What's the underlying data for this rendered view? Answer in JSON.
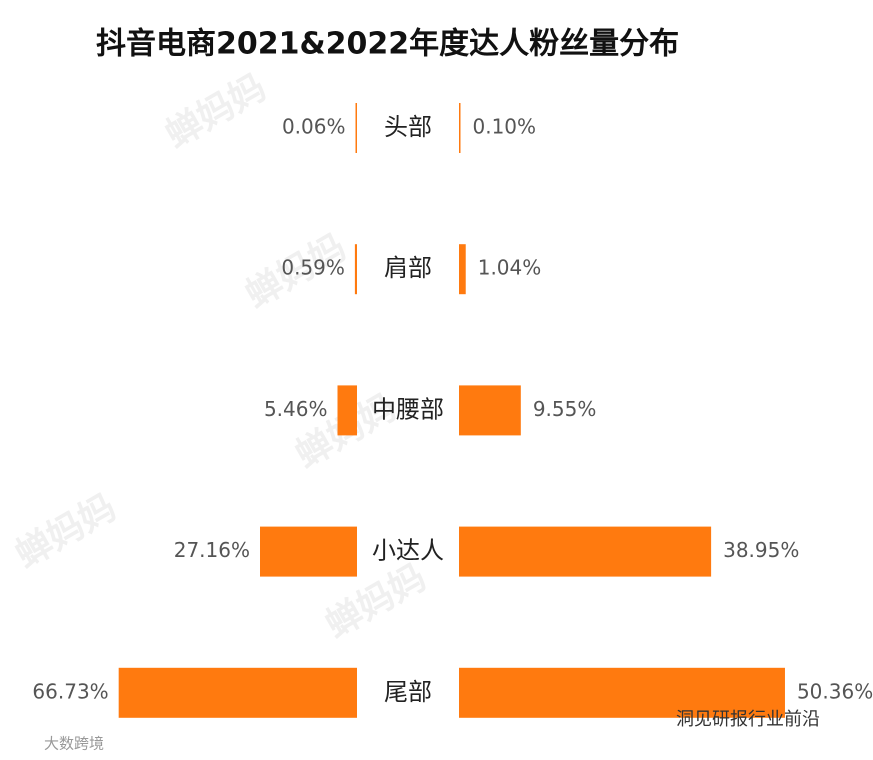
{
  "chart_data": {
    "type": "butterfly",
    "title": "抖音电商2021&2022年度达人粉丝量分布",
    "categories": [
      "头部",
      "肩部",
      "中腰部",
      "小达人",
      "尾部"
    ],
    "series": [
      {
        "color": "#ff7a0f",
        "xlim": [
          0,
          70
        ],
        "values": [
          0.06,
          0.59,
          5.46,
          27.16,
          66.73
        ],
        "value_labels": [
          "0.06%",
          "0.59%",
          "5.46%",
          "27.16%",
          "66.73%"
        ]
      },
      {
        "color": "#ff7a0f",
        "xlim": [
          0,
          55
        ],
        "values": [
          0.1,
          1.04,
          9.55,
          38.95,
          50.36
        ],
        "value_labels": [
          "0.10%",
          "1.04%",
          "9.55%",
          "38.95%",
          "50.36%"
        ]
      }
    ],
    "watermark": "蝉妈妈",
    "footer_left": "大数跨境",
    "footer_right": "洞见研报行业前沿"
  }
}
